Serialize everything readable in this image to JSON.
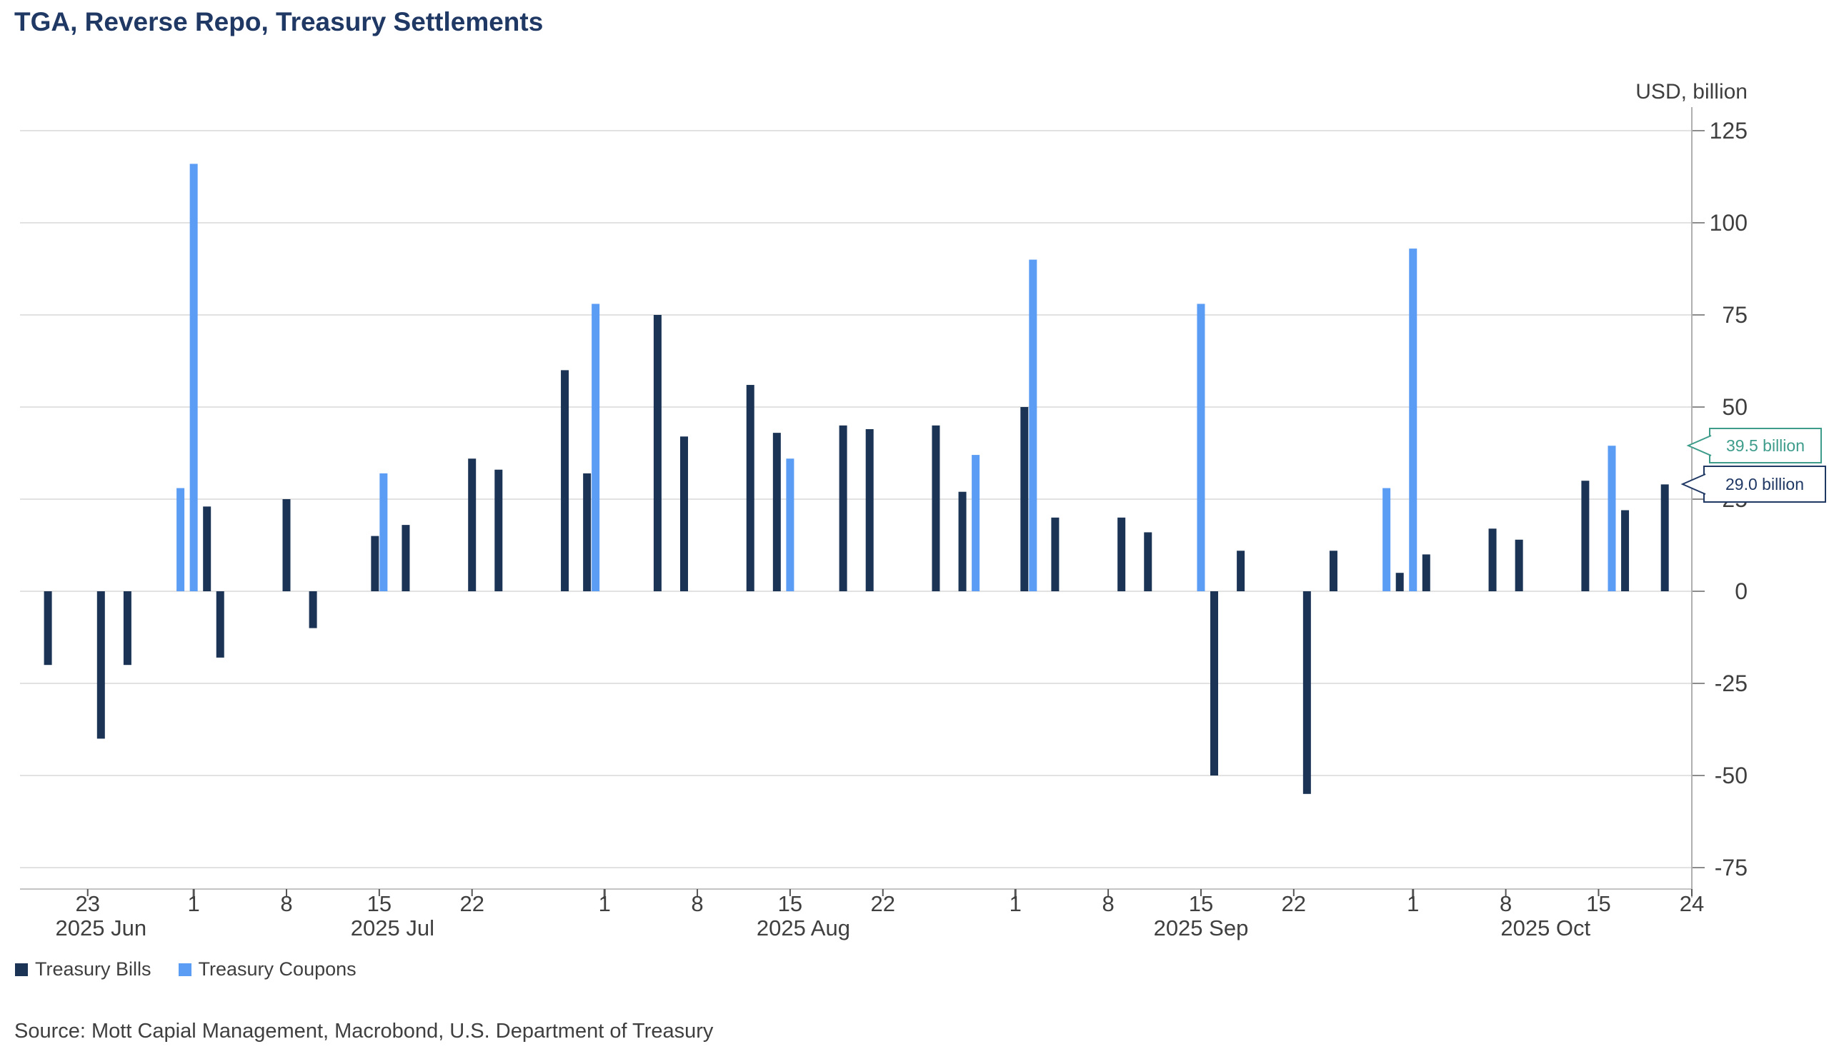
{
  "title": "TGA, Reverse Repo, Treasury Settlements",
  "header": {
    "unit_label": "USD, billion"
  },
  "chart_data": {
    "type": "bar",
    "title": "TGA, Reverse Repo, Treasury Settlements",
    "ylabel": "USD, billion",
    "ylim": [
      -75,
      125
    ],
    "y_ticks": [
      125,
      100,
      75,
      50,
      25,
      0,
      -25,
      -50,
      -75
    ],
    "grid": true,
    "legend_position": "bottom-left",
    "x_domain": [
      "2025-06-18",
      "2025-10-24"
    ],
    "x_ticks": [
      {
        "label": "23",
        "date": "2025-06-23"
      },
      {
        "label": "1",
        "date": "2025-07-01"
      },
      {
        "label": "8",
        "date": "2025-07-08"
      },
      {
        "label": "15",
        "date": "2025-07-15"
      },
      {
        "label": "22",
        "date": "2025-07-22"
      },
      {
        "label": "1",
        "date": "2025-08-01"
      },
      {
        "label": "8",
        "date": "2025-08-08"
      },
      {
        "label": "15",
        "date": "2025-08-15"
      },
      {
        "label": "22",
        "date": "2025-08-22"
      },
      {
        "label": "1",
        "date": "2025-09-01"
      },
      {
        "label": "8",
        "date": "2025-09-08"
      },
      {
        "label": "15",
        "date": "2025-09-15"
      },
      {
        "label": "22",
        "date": "2025-09-22"
      },
      {
        "label": "1",
        "date": "2025-10-01"
      },
      {
        "label": "8",
        "date": "2025-10-08"
      },
      {
        "label": "15",
        "date": "2025-10-15"
      },
      {
        "label": "24",
        "date": "2025-10-24"
      }
    ],
    "month_labels": [
      {
        "label": "2025 Jun",
        "date": "2025-06-24"
      },
      {
        "label": "2025 Jul",
        "date": "2025-07-16"
      },
      {
        "label": "2025 Aug",
        "date": "2025-08-16"
      },
      {
        "label": "2025 Sep",
        "date": "2025-09-15"
      },
      {
        "label": "2025 Oct",
        "date": "2025-10-11"
      }
    ],
    "series": [
      {
        "name": "Treasury Bills",
        "color": "#1b3456",
        "points": [
          {
            "date": "2025-06-20",
            "value": -20
          },
          {
            "date": "2025-06-24",
            "value": -40
          },
          {
            "date": "2025-06-26",
            "value": -20
          },
          {
            "date": "2025-07-02",
            "value": 23
          },
          {
            "date": "2025-07-03",
            "value": -18
          },
          {
            "date": "2025-07-08",
            "value": 25
          },
          {
            "date": "2025-07-10",
            "value": -10
          },
          {
            "date": "2025-07-15",
            "value": 15
          },
          {
            "date": "2025-07-17",
            "value": 18
          },
          {
            "date": "2025-07-22",
            "value": 36
          },
          {
            "date": "2025-07-24",
            "value": 33
          },
          {
            "date": "2025-07-29",
            "value": 60
          },
          {
            "date": "2025-07-31",
            "value": 32
          },
          {
            "date": "2025-08-05",
            "value": 75
          },
          {
            "date": "2025-08-07",
            "value": 42
          },
          {
            "date": "2025-08-12",
            "value": 56
          },
          {
            "date": "2025-08-14",
            "value": 43
          },
          {
            "date": "2025-08-19",
            "value": 45
          },
          {
            "date": "2025-08-21",
            "value": 44
          },
          {
            "date": "2025-08-26",
            "value": 45
          },
          {
            "date": "2025-08-28",
            "value": 27
          },
          {
            "date": "2025-09-02",
            "value": 50
          },
          {
            "date": "2025-09-04",
            "value": 20
          },
          {
            "date": "2025-09-09",
            "value": 20
          },
          {
            "date": "2025-09-11",
            "value": 16
          },
          {
            "date": "2025-09-16",
            "value": -50
          },
          {
            "date": "2025-09-18",
            "value": 11
          },
          {
            "date": "2025-09-23",
            "value": -55
          },
          {
            "date": "2025-09-25",
            "value": 11
          },
          {
            "date": "2025-09-30",
            "value": 5
          },
          {
            "date": "2025-10-02",
            "value": 10
          },
          {
            "date": "2025-10-07",
            "value": 17
          },
          {
            "date": "2025-10-09",
            "value": 14
          },
          {
            "date": "2025-10-14",
            "value": 30
          },
          {
            "date": "2025-10-17",
            "value": 22
          },
          {
            "date": "2025-10-20",
            "value": 29
          }
        ]
      },
      {
        "name": "Treasury Coupons",
        "color": "#5b9cf4",
        "points": [
          {
            "date": "2025-06-30",
            "value": 28
          },
          {
            "date": "2025-07-01",
            "value": 116
          },
          {
            "date": "2025-07-15",
            "value": 32
          },
          {
            "date": "2025-07-31",
            "value": 78
          },
          {
            "date": "2025-08-15",
            "value": 36
          },
          {
            "date": "2025-08-29",
            "value": 37
          },
          {
            "date": "2025-09-02",
            "value": 90
          },
          {
            "date": "2025-09-15",
            "value": 78
          },
          {
            "date": "2025-09-29",
            "value": 28
          },
          {
            "date": "2025-10-01",
            "value": 93
          },
          {
            "date": "2025-10-16",
            "value": 39.5
          }
        ]
      }
    ],
    "callouts": [
      {
        "label": "39.5 billion",
        "value": 39.5,
        "series": "Treasury Coupons",
        "color": "#3e9c8b"
      },
      {
        "label": "29.0 billion",
        "value": 29.0,
        "series": "Treasury Bills",
        "color": "#1f3864"
      }
    ]
  },
  "legend": {
    "items": [
      {
        "label": "Treasury Bills",
        "color": "#1b3456"
      },
      {
        "label": "Treasury Coupons",
        "color": "#5b9cf4"
      }
    ]
  },
  "source": "Source: Mott Capial Management, Macrobond, U.S. Department of Treasury",
  "colors": {
    "title": "#1f3864",
    "axis_text": "#3f3f3f",
    "gridline": "#d8d8d8",
    "axis_line": "#b0b0b0",
    "tick": "#8c8c8c"
  }
}
